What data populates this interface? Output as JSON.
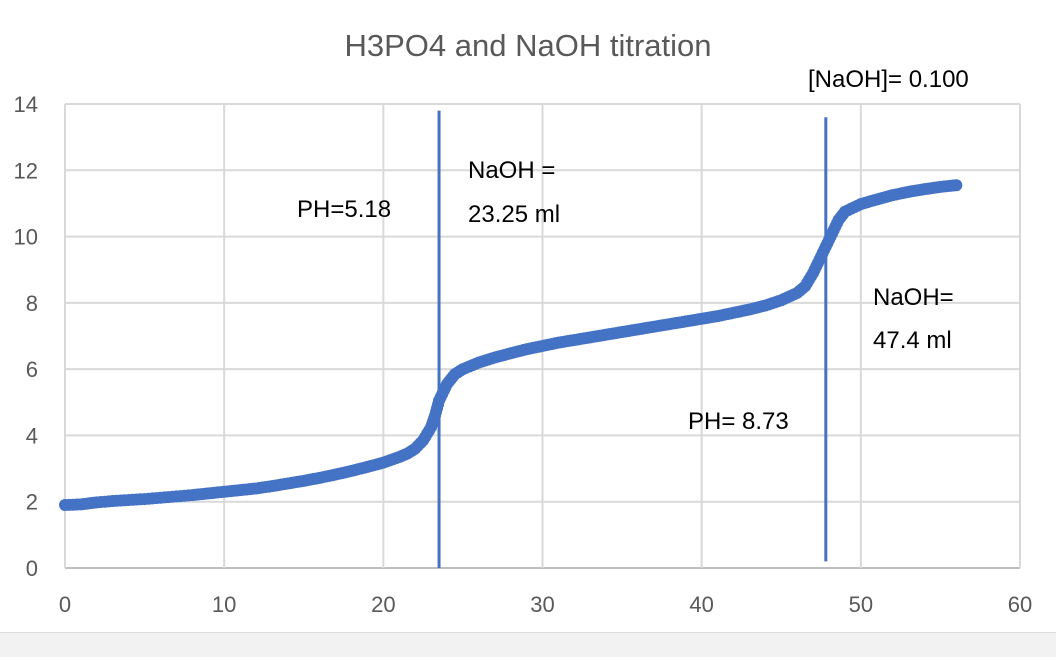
{
  "chart_data": {
    "type": "scatter",
    "title": "H3PO4 and NaOH titration",
    "xlabel": "",
    "ylabel": "",
    "xlim": [
      0,
      60
    ],
    "ylim": [
      0,
      14
    ],
    "x_ticks": [
      0,
      10,
      20,
      30,
      40,
      50,
      60
    ],
    "y_ticks": [
      0,
      2,
      4,
      6,
      8,
      10,
      12,
      14
    ],
    "grid": true,
    "legend": "none",
    "series": [
      {
        "color": "#4472c4",
        "points": [
          [
            0,
            1.9
          ],
          [
            1,
            1.92
          ],
          [
            2,
            1.98
          ],
          [
            3,
            2.02
          ],
          [
            4,
            2.05
          ],
          [
            5,
            2.08
          ],
          [
            6,
            2.12
          ],
          [
            7,
            2.16
          ],
          [
            8,
            2.2
          ],
          [
            9,
            2.25
          ],
          [
            10,
            2.3
          ],
          [
            11,
            2.35
          ],
          [
            12,
            2.4
          ],
          [
            13,
            2.47
          ],
          [
            14,
            2.55
          ],
          [
            15,
            2.63
          ],
          [
            16,
            2.72
          ],
          [
            17,
            2.82
          ],
          [
            18,
            2.93
          ],
          [
            19,
            3.05
          ],
          [
            20,
            3.18
          ],
          [
            21,
            3.35
          ],
          [
            21.5,
            3.45
          ],
          [
            22,
            3.6
          ],
          [
            22.5,
            3.85
          ],
          [
            23,
            4.25
          ],
          [
            23.25,
            4.6
          ],
          [
            23.5,
            5.05
          ],
          [
            24,
            5.55
          ],
          [
            24.5,
            5.85
          ],
          [
            25,
            6.0
          ],
          [
            26,
            6.2
          ],
          [
            27,
            6.35
          ],
          [
            28,
            6.48
          ],
          [
            29,
            6.6
          ],
          [
            30,
            6.7
          ],
          [
            31,
            6.8
          ],
          [
            32,
            6.88
          ],
          [
            33,
            6.96
          ],
          [
            34,
            7.04
          ],
          [
            35,
            7.12
          ],
          [
            36,
            7.2
          ],
          [
            37,
            7.28
          ],
          [
            38,
            7.36
          ],
          [
            39,
            7.44
          ],
          [
            40,
            7.52
          ],
          [
            41,
            7.6
          ],
          [
            42,
            7.7
          ],
          [
            43,
            7.8
          ],
          [
            44,
            7.92
          ],
          [
            45,
            8.08
          ],
          [
            46,
            8.3
          ],
          [
            46.5,
            8.5
          ],
          [
            47,
            8.9
          ],
          [
            47.4,
            9.3
          ],
          [
            47.8,
            9.7
          ],
          [
            48.2,
            10.1
          ],
          [
            48.6,
            10.5
          ],
          [
            49,
            10.75
          ],
          [
            50,
            10.98
          ],
          [
            51,
            11.12
          ],
          [
            52,
            11.25
          ],
          [
            53,
            11.35
          ],
          [
            54,
            11.43
          ],
          [
            55,
            11.5
          ],
          [
            56,
            11.55
          ]
        ]
      }
    ],
    "vlines": [
      {
        "x": 23.5,
        "y_from": 0,
        "y_to": 13.8,
        "color": "#4472c4"
      },
      {
        "x": 47.8,
        "y_from": 0.2,
        "y_to": 13.6,
        "color": "#4472c4"
      }
    ],
    "annotations": [
      {
        "text": "[NaOH]= 0.100"
      },
      {
        "text": "PH=5.18"
      },
      {
        "text": "NaOH ="
      },
      {
        "text": "23.25 ml"
      },
      {
        "text": "NaOH="
      },
      {
        "text": "47.4 ml"
      },
      {
        "text": "PH= 8.73"
      }
    ]
  }
}
